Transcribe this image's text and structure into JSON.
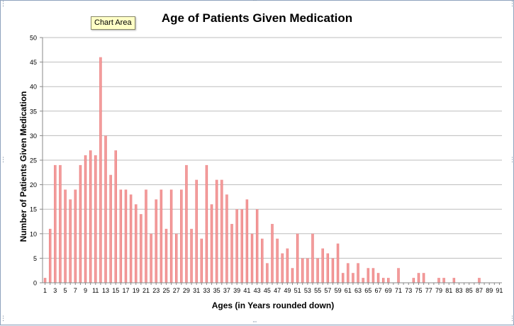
{
  "tooltip": {
    "text": "Chart Area"
  },
  "colors": {
    "bar": "#f08080",
    "grid": "#bdbdbd",
    "axis": "#888888",
    "frame": "#8fa3bd"
  },
  "chart_data": {
    "type": "bar",
    "title": "Age of Patients Given Medication",
    "xlabel": "Ages (in Years rounded down)",
    "ylabel": "Number of Patients Given Medication",
    "ylim": [
      0,
      50
    ],
    "yticks": [
      0,
      5,
      10,
      15,
      20,
      25,
      30,
      35,
      40,
      45,
      50
    ],
    "grid": true,
    "legend": "none",
    "categories": [
      1,
      2,
      3,
      4,
      5,
      6,
      7,
      8,
      9,
      10,
      11,
      12,
      13,
      14,
      15,
      16,
      17,
      18,
      19,
      20,
      21,
      22,
      23,
      24,
      25,
      26,
      27,
      28,
      29,
      30,
      31,
      32,
      33,
      34,
      35,
      36,
      37,
      38,
      39,
      40,
      41,
      42,
      43,
      44,
      45,
      46,
      47,
      48,
      49,
      50,
      51,
      52,
      53,
      54,
      55,
      56,
      57,
      58,
      59,
      60,
      61,
      62,
      63,
      64,
      65,
      66,
      67,
      68,
      69,
      70,
      71,
      72,
      73,
      74,
      75,
      76,
      77,
      78,
      79,
      80,
      81,
      82,
      83,
      84,
      85,
      86,
      87,
      88,
      89,
      90,
      91
    ],
    "values": [
      1,
      11,
      24,
      24,
      19,
      17,
      19,
      24,
      26,
      27,
      26,
      46,
      30,
      22,
      27,
      19,
      19,
      18,
      16,
      14,
      19,
      10,
      17,
      19,
      11,
      19,
      10,
      19,
      24,
      11,
      21,
      9,
      24,
      16,
      21,
      21,
      18,
      12,
      15,
      15,
      17,
      10,
      15,
      9,
      4,
      12,
      9,
      6,
      7,
      3,
      10,
      5,
      5,
      10,
      5,
      7,
      6,
      5,
      8,
      2,
      4,
      2,
      4,
      1,
      3,
      3,
      2,
      1,
      1,
      0,
      3,
      0,
      0,
      1,
      2,
      2,
      0,
      0,
      1,
      1,
      0,
      1,
      0,
      0,
      0,
      0,
      1,
      0,
      0,
      0,
      0
    ]
  }
}
